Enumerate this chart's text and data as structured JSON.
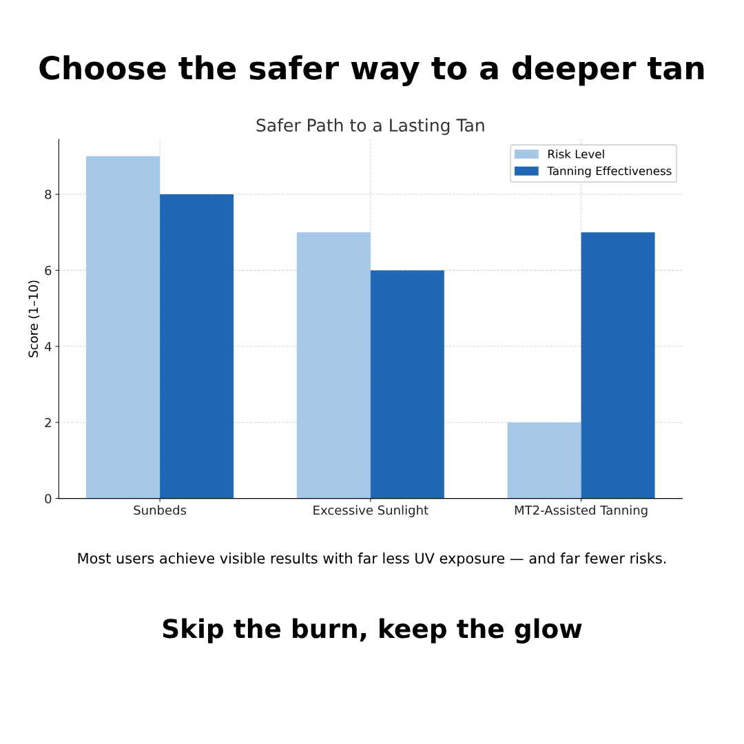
{
  "chart_data": {
    "type": "bar",
    "title": "Choose the safer way to a deeper tan",
    "subtitle": "Safer Path to a Lasting Tan",
    "ylabel": "Score (1–10)",
    "categories": [
      "Sunbeds",
      "Excessive Sunlight",
      "MT2-Assisted Tanning"
    ],
    "series": [
      {
        "name": "Risk Level",
        "color": "#a6c8e8",
        "values": [
          9,
          7,
          2
        ]
      },
      {
        "name": "Tanning Effectiveness",
        "color": "#2068b6",
        "values": [
          8,
          6,
          7
        ]
      }
    ],
    "ylim": [
      0,
      9.45
    ],
    "yticks": [
      0,
      2,
      4,
      6,
      8
    ],
    "grid": true,
    "legend": "top right",
    "annotations": [
      "Most users achieve visible results with far less UV exposure — and far fewer risks.",
      "Skip the burn, keep the glow"
    ]
  }
}
